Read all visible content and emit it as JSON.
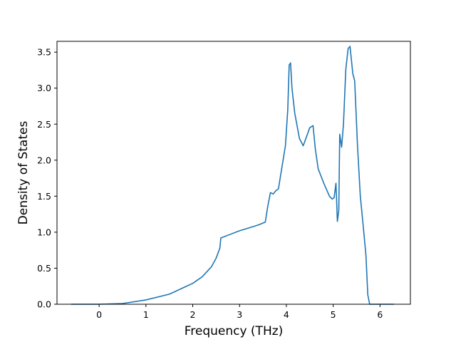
{
  "chart_data": {
    "type": "line",
    "title": "",
    "xlabel": "Frequency (THz)",
    "ylabel": "Density of States",
    "xlim": [
      -0.9,
      6.65
    ],
    "ylim": [
      0,
      3.65
    ],
    "xticks": [
      0,
      1,
      2,
      3,
      4,
      5,
      6
    ],
    "xtick_labels": [
      "0",
      "1",
      "2",
      "3",
      "4",
      "5",
      "6"
    ],
    "yticks": [
      0.0,
      0.5,
      1.0,
      1.5,
      2.0,
      2.5,
      3.0,
      3.5
    ],
    "ytick_labels": [
      "0.0",
      "0.5",
      "1.0",
      "1.5",
      "2.0",
      "2.5",
      "3.0",
      "3.5"
    ],
    "grid": false,
    "legend": false,
    "series": [
      {
        "color": "#1f77b4",
        "x": [
          -0.6,
          0.0,
          0.5,
          1.0,
          1.5,
          2.0,
          2.2,
          2.4,
          2.5,
          2.58,
          2.6,
          2.8,
          3.0,
          3.2,
          3.4,
          3.55,
          3.6,
          3.66,
          3.72,
          3.78,
          3.83,
          3.88,
          3.98,
          4.03,
          4.06,
          4.09,
          4.12,
          4.18,
          4.28,
          4.36,
          4.5,
          4.57,
          4.62,
          4.68,
          4.8,
          4.92,
          4.98,
          5.02,
          5.06,
          5.09,
          5.12,
          5.14,
          5.18,
          5.22,
          5.27,
          5.32,
          5.36,
          5.42,
          5.46,
          5.52,
          5.58,
          5.64,
          5.7,
          5.74,
          5.78,
          6.0,
          6.3
        ],
        "y": [
          0.0,
          0.0,
          0.01,
          0.06,
          0.14,
          0.29,
          0.38,
          0.52,
          0.64,
          0.78,
          0.92,
          0.97,
          1.02,
          1.06,
          1.1,
          1.14,
          1.35,
          1.55,
          1.53,
          1.58,
          1.6,
          1.8,
          2.2,
          2.7,
          3.32,
          3.35,
          3.0,
          2.65,
          2.3,
          2.2,
          2.45,
          2.48,
          2.15,
          1.88,
          1.68,
          1.5,
          1.46,
          1.48,
          1.68,
          1.15,
          1.3,
          2.36,
          2.18,
          2.5,
          3.26,
          3.55,
          3.58,
          3.2,
          3.1,
          2.2,
          1.5,
          1.1,
          0.68,
          0.13,
          0.0,
          0.0,
          0.0
        ]
      }
    ]
  }
}
